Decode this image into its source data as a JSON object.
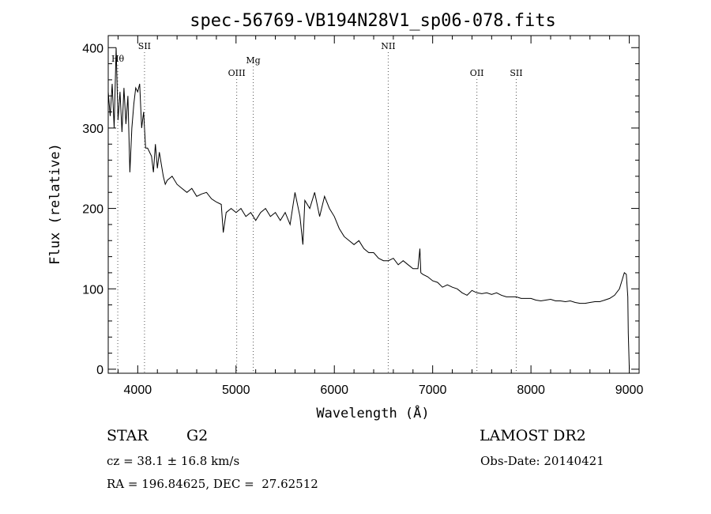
{
  "chart_data": {
    "type": "line",
    "title": "spec-56769-VB194N28V1_sp06-078.fits",
    "xlabel": "Wavelength (Å)",
    "ylabel": "Flux (relative)",
    "xlim": [
      3700,
      9100
    ],
    "ylim": [
      -5,
      415
    ],
    "x_ticks": [
      4000,
      5000,
      6000,
      7000,
      8000,
      9000
    ],
    "y_ticks": [
      0,
      100,
      200,
      300,
      400
    ],
    "grid": false,
    "line_color": "#000000",
    "series": [
      {
        "x": [
          3700,
          3720,
          3740,
          3760,
          3780,
          3800,
          3820,
          3840,
          3860,
          3880,
          3900,
          3920,
          3940,
          3960,
          3980,
          4000,
          4020,
          4040,
          4060,
          4080,
          4100,
          4120,
          4140,
          4160,
          4180,
          4200,
          4220,
          4240,
          4260,
          4280,
          4300,
          4350,
          4400,
          4450,
          4500,
          4550,
          4600,
          4650,
          4700,
          4750,
          4800,
          4850,
          4870,
          4900,
          4950,
          5000,
          5050,
          5100,
          5150,
          5200,
          5250,
          5300,
          5350,
          5400,
          5450,
          5500,
          5550,
          5600,
          5650,
          5680,
          5700,
          5750,
          5800,
          5850,
          5900,
          5950,
          6000,
          6050,
          6100,
          6150,
          6200,
          6250,
          6300,
          6350,
          6400,
          6450,
          6500,
          6550,
          6600,
          6650,
          6700,
          6750,
          6800,
          6850,
          6870,
          6880,
          6900,
          6950,
          7000,
          7050,
          7100,
          7150,
          7200,
          7250,
          7300,
          7350,
          7400,
          7450,
          7500,
          7550,
          7600,
          7650,
          7700,
          7750,
          7800,
          7850,
          7900,
          7950,
          8000,
          8050,
          8100,
          8150,
          8200,
          8250,
          8300,
          8350,
          8400,
          8450,
          8500,
          8550,
          8600,
          8650,
          8700,
          8750,
          8800,
          8850,
          8900,
          8930,
          8950,
          8970,
          8985,
          8990,
          9000
        ],
        "y": [
          345,
          315,
          355,
          300,
          400,
          310,
          345,
          295,
          350,
          305,
          340,
          245,
          300,
          330,
          350,
          345,
          355,
          300,
          320,
          275,
          275,
          270,
          265,
          245,
          280,
          250,
          270,
          255,
          240,
          230,
          235,
          240,
          230,
          225,
          220,
          225,
          215,
          218,
          220,
          212,
          208,
          205,
          170,
          195,
          200,
          195,
          200,
          190,
          195,
          185,
          195,
          200,
          190,
          195,
          185,
          195,
          180,
          220,
          190,
          155,
          210,
          200,
          220,
          190,
          215,
          200,
          190,
          175,
          165,
          160,
          155,
          160,
          150,
          145,
          145,
          138,
          135,
          135,
          138,
          130,
          135,
          130,
          125,
          125,
          150,
          120,
          118,
          115,
          110,
          108,
          102,
          105,
          102,
          100,
          95,
          92,
          98,
          95,
          94,
          95,
          93,
          95,
          92,
          90,
          90,
          90,
          88,
          88,
          88,
          86,
          85,
          86,
          87,
          85,
          85,
          84,
          85,
          83,
          82,
          82,
          83,
          84,
          84,
          86,
          88,
          92,
          100,
          112,
          120,
          118,
          90,
          45,
          0
        ]
      }
    ],
    "line_markers": [
      {
        "label": "Hθ",
        "x": 3797
      },
      {
        "label": "SII",
        "x": 4069
      },
      {
        "label": "OIII",
        "x": 5007
      },
      {
        "label": "Mg",
        "x": 5175
      },
      {
        "label": "NII",
        "x": 6548
      },
      {
        "label": "OII",
        "x": 7450
      },
      {
        "label": "SII",
        "x": 7850
      }
    ]
  },
  "info": {
    "object_type": "STAR",
    "subclass": "G2",
    "survey": "LAMOST DR2",
    "redshift": "cz = 38.1 ± 16.8 km/s",
    "obs_date": "Obs-Date: 20140421",
    "coords": "RA = 196.84625, DEC =  27.62512"
  }
}
